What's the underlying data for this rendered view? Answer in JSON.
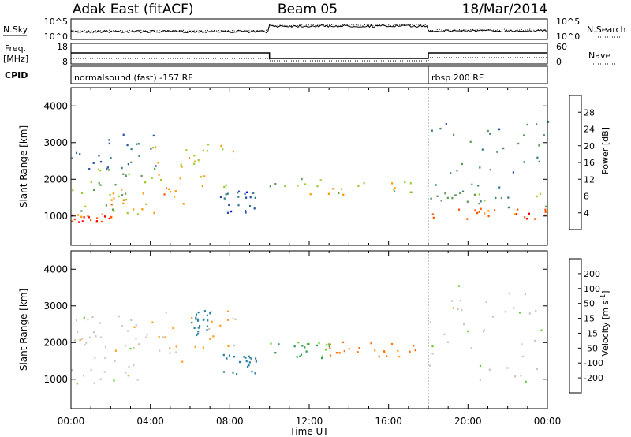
{
  "header": {
    "title": "Adak East (fitACF)",
    "beam": "Beam 05",
    "date": "18/Mar/2014"
  },
  "noise_panel": {
    "left_label": "N.Sky",
    "right_label": "N.Search",
    "left_ticks": [
      "10^5",
      "10^0"
    ],
    "right_ticks": [
      "10^5",
      "10^0"
    ]
  },
  "freq_panel": {
    "left_label": "Freq.",
    "left_unit": "[MHz]",
    "left_ticks": [
      "18",
      "8"
    ],
    "right_label": "Nave",
    "right_ticks": [
      "60",
      "0"
    ]
  },
  "cpid_panel": {
    "label": "CPID",
    "programs": [
      {
        "name": "normalsound (fast) -157 RF",
        "start_hour": 0
      },
      {
        "name": "rbsp 200 RF",
        "start_hour": 18
      }
    ]
  },
  "chart_data": [
    {
      "type": "heatmap",
      "name": "power",
      "quantity": "Power",
      "xlabel": "Time UT",
      "ylabel": "Slant Range [km]",
      "xlim": [
        0,
        24
      ],
      "ylim": [
        200,
        4500
      ],
      "x_ticks": [
        "00:00",
        "04:00",
        "08:00",
        "12:00",
        "16:00",
        "20:00",
        "00:00"
      ],
      "y_ticks": [
        "1000",
        "2000",
        "3000",
        "4000"
      ],
      "colorbar": {
        "label": "Power [dB]",
        "ticks": [
          "4",
          "8",
          "12",
          "16",
          "20",
          "24",
          "28"
        ],
        "colors": [
          "#0000ff",
          "#2a52a8",
          "#3a7f86",
          "#5f9a5b",
          "#9ccc2e",
          "#ff9900",
          "#ff5a00",
          "#ff0000"
        ]
      },
      "regions": [
        {
          "t0": 0.0,
          "t1": 2.0,
          "r0": 850,
          "r1": 1080,
          "level": 26
        },
        {
          "t0": 0.0,
          "t1": 4.0,
          "r0": 1050,
          "r1": 2300,
          "level": 16
        },
        {
          "t0": 0.0,
          "t1": 4.5,
          "r0": 2300,
          "r1": 3300,
          "level": 9
        },
        {
          "t0": 2.0,
          "t1": 6.0,
          "r0": 1100,
          "r1": 1800,
          "level": 22
        },
        {
          "t0": 4.0,
          "t1": 8.3,
          "r0": 1800,
          "r1": 3000,
          "level": 20
        },
        {
          "t0": 7.5,
          "t1": 9.5,
          "r0": 1100,
          "r1": 1700,
          "level": 7
        },
        {
          "t0": 10.0,
          "t1": 17.5,
          "r0": 1600,
          "r1": 2050,
          "level": 18
        },
        {
          "t0": 18.0,
          "t1": 24.0,
          "r0": 900,
          "r1": 1250,
          "level": 27
        },
        {
          "t0": 18.0,
          "t1": 24.0,
          "r0": 1250,
          "r1": 1700,
          "level": 13
        },
        {
          "t0": 18.0,
          "t1": 24.0,
          "r0": 1800,
          "r1": 3600,
          "level": 11
        }
      ]
    },
    {
      "type": "heatmap",
      "name": "velocity",
      "quantity": "Velocity",
      "xlabel": "Time UT",
      "ylabel": "Slant Range [km]",
      "xlim": [
        0,
        24
      ],
      "ylim": [
        200,
        4500
      ],
      "x_ticks": [
        "00:00",
        "04:00",
        "08:00",
        "12:00",
        "16:00",
        "20:00",
        "00:00"
      ],
      "y_ticks": [
        "1000",
        "2000",
        "3000",
        "4000"
      ],
      "colorbar": {
        "label": "Velocity [m s",
        "label_superscript": "-1",
        "label_close": "]",
        "ticks": [
          "200",
          "100",
          "50",
          "15",
          "-15",
          "-50",
          "-100",
          "-200"
        ],
        "colors": [
          "#2040c0",
          "#2a80a0",
          "#30a050",
          "#66cc33",
          "#c8c8c0",
          "#ffa020",
          "#ff7000",
          "#ff3000",
          "#ff0000"
        ]
      },
      "regions": [
        {
          "t0": 0.0,
          "t1": 3.5,
          "r0": 900,
          "r1": 2000,
          "level": 0
        },
        {
          "t0": 0.0,
          "t1": 4.5,
          "r0": 2000,
          "r1": 2800,
          "level": 0
        },
        {
          "t0": 4.0,
          "t1": 8.3,
          "r0": 1500,
          "r1": 2900,
          "level": -20
        },
        {
          "t0": 6.0,
          "t1": 7.0,
          "r0": 2200,
          "r1": 2900,
          "level": 180
        },
        {
          "t0": 7.5,
          "t1": 9.5,
          "r0": 1100,
          "r1": 1700,
          "level": 120
        },
        {
          "t0": 10.0,
          "t1": 13.0,
          "r0": 1600,
          "r1": 2050,
          "level": 60
        },
        {
          "t0": 13.0,
          "t1": 17.5,
          "r0": 1600,
          "r1": 2050,
          "level": -60
        },
        {
          "t0": 18.0,
          "t1": 24.0,
          "r0": 900,
          "r1": 3600,
          "level": 0
        }
      ]
    }
  ]
}
